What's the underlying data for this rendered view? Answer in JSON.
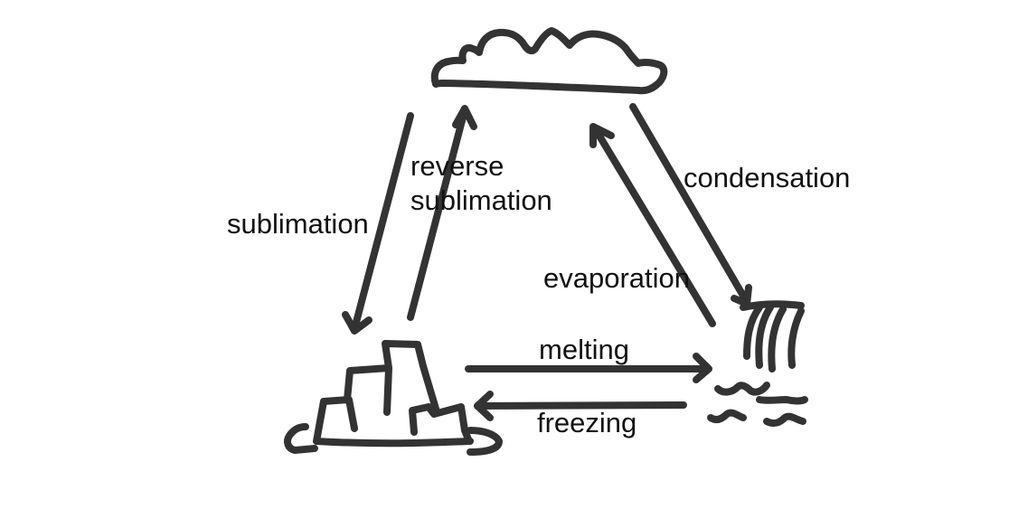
{
  "diagram": {
    "type": "states-of-matter-cycle",
    "nodes": [
      {
        "id": "cloud",
        "icon": "cloud-icon"
      },
      {
        "id": "ice",
        "icon": "ice-blocks-icon"
      },
      {
        "id": "water",
        "icon": "waterfall-icon"
      }
    ],
    "edges": [
      {
        "from": "ice",
        "to": "cloud",
        "label": "reverse sublimation"
      },
      {
        "from": "cloud",
        "to": "ice",
        "label": "sublimation"
      },
      {
        "from": "cloud",
        "to": "water",
        "label": "condensation"
      },
      {
        "from": "water",
        "to": "cloud",
        "label": "evaporation"
      },
      {
        "from": "ice",
        "to": "water",
        "label": "melting"
      },
      {
        "from": "water",
        "to": "ice",
        "label": "freezing"
      }
    ],
    "labels": {
      "sublimation": "sublimation",
      "reverse_line1": "reverse",
      "reverse_line2": "sublimation",
      "condensation": "condensation",
      "evaporation": "evaporation",
      "melting": "melting",
      "freezing": "freezing"
    },
    "colors": {
      "ink": "#333333",
      "text": "#111111",
      "background": "#ffffff"
    }
  }
}
